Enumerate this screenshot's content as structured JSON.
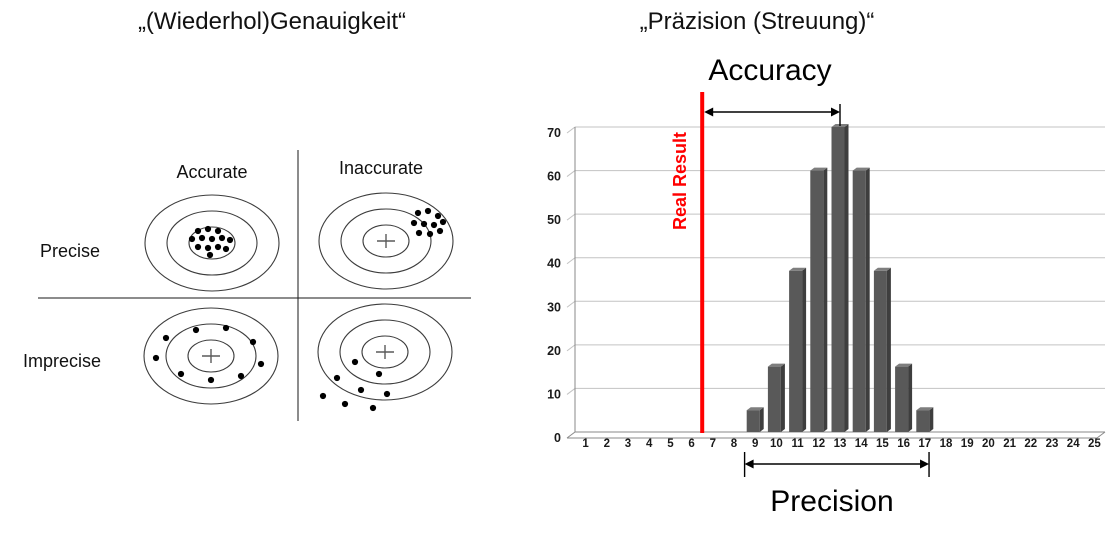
{
  "titles": {
    "left": "„(Wiederhol)Genauigkeit“",
    "right": "„Präzision (Streuung)“"
  },
  "quadrant": {
    "col_labels": [
      "Accurate",
      "Inaccurate"
    ],
    "row_labels": [
      "Precise",
      "Imprecise"
    ],
    "cells": [
      {
        "id": "precise-accurate",
        "row": "Precise",
        "col": "Accurate",
        "pattern": "tight-cluster-centered",
        "cross": false,
        "dots": [
          [
            -14,
            -12
          ],
          [
            -4,
            -14
          ],
          [
            6,
            -12
          ],
          [
            -20,
            -4
          ],
          [
            -10,
            -5
          ],
          [
            0,
            -4
          ],
          [
            10,
            -5
          ],
          [
            18,
            -3
          ],
          [
            -14,
            4
          ],
          [
            -4,
            5
          ],
          [
            6,
            4
          ],
          [
            14,
            6
          ],
          [
            -2,
            12
          ]
        ]
      },
      {
        "id": "precise-inaccurate",
        "row": "Precise",
        "col": "Inaccurate",
        "pattern": "tight-cluster-offset-top-right",
        "cross": true,
        "dots": [
          [
            32,
            -28
          ],
          [
            42,
            -30
          ],
          [
            52,
            -25
          ],
          [
            28,
            -18
          ],
          [
            38,
            -17
          ],
          [
            48,
            -16
          ],
          [
            57,
            -19
          ],
          [
            33,
            -8
          ],
          [
            44,
            -7
          ],
          [
            54,
            -10
          ]
        ]
      },
      {
        "id": "imprecise-accurate",
        "row": "Imprecise",
        "col": "Accurate",
        "pattern": "scattered-around-center",
        "cross": true,
        "dots": [
          [
            -45,
            -18
          ],
          [
            -15,
            -26
          ],
          [
            15,
            -28
          ],
          [
            42,
            -14
          ],
          [
            -55,
            2
          ],
          [
            50,
            8
          ],
          [
            -30,
            18
          ],
          [
            0,
            24
          ],
          [
            30,
            20
          ]
        ]
      },
      {
        "id": "imprecise-inaccurate",
        "row": "Imprecise",
        "col": "Inaccurate",
        "pattern": "scattered-offset-bottom-left",
        "cross": true,
        "dots": [
          [
            -30,
            10
          ],
          [
            -6,
            22
          ],
          [
            -48,
            26
          ],
          [
            -24,
            38
          ],
          [
            2,
            42
          ],
          [
            -62,
            44
          ],
          [
            -40,
            52
          ],
          [
            -12,
            56
          ]
        ]
      }
    ]
  },
  "chart": {
    "accuracy_label": "Accuracy",
    "real_result_label": "Real Result",
    "precision_label": "Precision",
    "colors": {
      "real_result": "#ff0000",
      "bar": "#595959",
      "bar_side": "#3e3e3e",
      "bar_top": "#7e7e7e",
      "gridline": "#c3c3c3",
      "axis": "#8a8a8a",
      "text": "#1a1a1a",
      "arrow": "#000000"
    }
  },
  "chart_data": {
    "type": "bar",
    "title": "",
    "xlabel": "",
    "ylabel": "",
    "x": [
      1,
      2,
      3,
      4,
      5,
      6,
      7,
      8,
      9,
      10,
      11,
      12,
      13,
      14,
      15,
      16,
      17,
      18,
      19,
      20,
      21,
      22,
      23,
      24,
      25
    ],
    "values": [
      0,
      0,
      0,
      0,
      0,
      0,
      0,
      0,
      5,
      15,
      37,
      60,
      70,
      60,
      37,
      15,
      5,
      0,
      0,
      0,
      0,
      0,
      0,
      0,
      0
    ],
    "yticks": [
      0,
      10,
      20,
      30,
      40,
      50,
      60,
      70
    ],
    "ylim": [
      0,
      70
    ],
    "xlim": [
      1,
      25
    ],
    "grid": true,
    "legend": false,
    "real_result_x": 6.5,
    "accuracy_span_x": [
      6.5,
      13
    ],
    "precision_span_x": [
      8.5,
      17.2
    ]
  }
}
